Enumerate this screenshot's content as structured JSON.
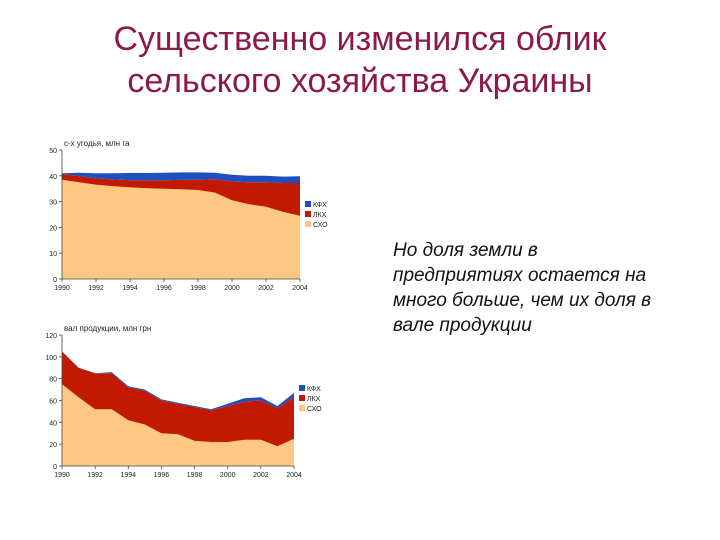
{
  "slide": {
    "title_line1": "Существенно изменился облик",
    "title_line2": "сельского хозяйства Украины",
    "side_text": "Но доля земли в предприятиях остается на много больше, чем их доля в вале продукции"
  },
  "colors": {
    "kfh": "#1f4fbf",
    "lkh": "#c21a00",
    "sho": "#ffc882"
  },
  "chart_data": [
    {
      "type": "area",
      "stacked": true,
      "title": "с-х угодья, млн га",
      "x": [
        1990,
        1991,
        1992,
        1993,
        1994,
        1995,
        1996,
        1997,
        1998,
        1999,
        2000,
        2001,
        2002,
        2003,
        2004
      ],
      "xticks": [
        "1990",
        "1992",
        "1994",
        "1996",
        "1998",
        "2000",
        "2002",
        "2004"
      ],
      "yticks": [
        "0",
        "10",
        "20",
        "30",
        "40",
        "50"
      ],
      "ylim": [
        0,
        50
      ],
      "legend_position": "right",
      "series": [
        {
          "name": "СХО",
          "values": [
            38.5,
            37.5,
            36.5,
            36,
            35.5,
            35.2,
            35,
            34.8,
            34.5,
            33.5,
            30.5,
            29,
            28,
            26,
            24.5
          ]
        },
        {
          "name": "ЛКХ",
          "values": [
            2.3,
            2.4,
            2.5,
            2.6,
            2.8,
            3,
            3.3,
            3.6,
            4,
            5.2,
            7.3,
            8.5,
            9.5,
            11.2,
            12.7
          ]
        },
        {
          "name": "КФХ",
          "values": [
            0.2,
            1.3,
            2,
            2.4,
            2.8,
            2.9,
            2.9,
            2.9,
            2.8,
            2.5,
            2.6,
            2.5,
            2.5,
            2.5,
            2.6
          ]
        }
      ]
    },
    {
      "type": "area",
      "stacked": true,
      "title": "вал продукции, млн грн",
      "x": [
        1990,
        1991,
        1992,
        1993,
        1994,
        1995,
        1996,
        1997,
        1998,
        1999,
        2000,
        2001,
        2002,
        2003,
        2004
      ],
      "xticks": [
        "1990",
        "1992",
        "1994",
        "1996",
        "1998",
        "2000",
        "2002",
        "2004"
      ],
      "yticks": [
        "0",
        "20",
        "40",
        "60",
        "80",
        "100",
        "120"
      ],
      "ylim": [
        0,
        120
      ],
      "legend_position": "right",
      "series": [
        {
          "name": "СХО",
          "values": [
            75,
            63,
            52,
            52,
            42,
            38,
            30,
            29,
            23,
            22,
            22,
            24,
            24,
            18,
            25
          ]
        },
        {
          "name": "ЛКХ",
          "values": [
            30,
            27,
            33,
            33,
            30,
            31,
            30,
            28,
            31,
            29,
            33,
            35,
            36,
            35,
            38
          ]
        },
        {
          "name": "КФХ",
          "values": [
            0,
            0,
            0,
            1,
            1,
            1,
            1,
            1,
            1,
            1,
            2,
            3,
            3,
            2,
            4
          ]
        }
      ]
    }
  ]
}
